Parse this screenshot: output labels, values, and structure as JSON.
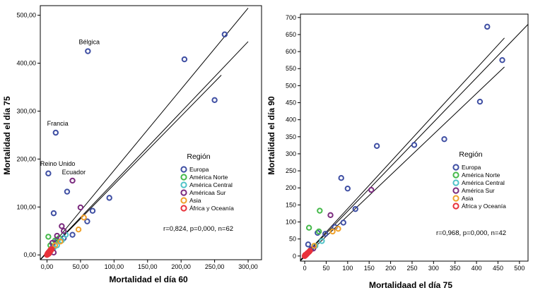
{
  "chart_data": [
    {
      "type": "scatter",
      "xlabel": "Mortalidad el día 60",
      "ylabel": "Mortalidad el día 75",
      "xlim": [
        -10,
        320
      ],
      "ylim": [
        -10,
        520
      ],
      "xticks": [
        "0,00",
        "50,00",
        "100,00",
        "150,00",
        "200,00",
        "250,00",
        "300,00"
      ],
      "yticks": [
        "0,00",
        "100,00",
        "200,00",
        "300,00",
        "400,00",
        "500,00"
      ],
      "legend_title": "Región",
      "legend": [
        {
          "label": "Europa",
          "color": "#3F4FA3"
        },
        {
          "label": "América Norte",
          "color": "#45B94A"
        },
        {
          "label": "América Central",
          "color": "#4FC3C8"
        },
        {
          "label": "Américaa Sur",
          "color": "#7B2B7E"
        },
        {
          "label": "Asia",
          "color": "#F0A12A"
        },
        {
          "label": "África y Oceanía",
          "color": "#E8323A"
        }
      ],
      "stat_text": "r=0,824, p=0,000, n=62",
      "fit_lines": [
        {
          "x": [
            -10,
            300
          ],
          "y": [
            -10,
            515
          ]
        },
        {
          "x": [
            -10,
            300
          ],
          "y": [
            -10,
            445
          ]
        },
        {
          "x": [
            -10,
            260
          ],
          "y": [
            -10,
            375
          ]
        }
      ],
      "annotations": [
        {
          "text": "Bélgica",
          "x": 63,
          "y": 440
        },
        {
          "text": "Francia",
          "x": 16,
          "y": 270
        },
        {
          "text": "Reino Unido",
          "x": 16,
          "y": 186
        },
        {
          "text": "Ecuador",
          "x": 40,
          "y": 168
        }
      ],
      "series": [
        {
          "name": "Europa",
          "points": [
            [
              61,
              425
            ],
            [
              205,
              408
            ],
            [
              265,
              460
            ],
            [
              250,
              323
            ],
            [
              13,
              255
            ],
            [
              2,
              170
            ],
            [
              30,
              132
            ],
            [
              93,
              119
            ],
            [
              68,
              92
            ],
            [
              10,
              87
            ],
            [
              60,
              70
            ],
            [
              38,
              42
            ],
            [
              25,
              35
            ],
            [
              15,
              30
            ],
            [
              8,
              15
            ],
            [
              4,
              8
            ]
          ]
        },
        {
          "name": "América Norte",
          "points": [
            [
              2,
              38
            ],
            [
              12,
              30
            ],
            [
              18,
              35
            ],
            [
              5,
              20
            ]
          ]
        },
        {
          "name": "América Central",
          "points": [
            [
              28,
              42
            ],
            [
              22,
              30
            ],
            [
              15,
              20
            ],
            [
              10,
              15
            ],
            [
              5,
              8
            ]
          ]
        },
        {
          "name": "Américaa Sur",
          "points": [
            [
              38,
              155
            ],
            [
              50,
              99
            ],
            [
              22,
              60
            ],
            [
              15,
              40
            ],
            [
              25,
              50
            ],
            [
              10,
              5
            ],
            [
              8,
              25
            ]
          ]
        },
        {
          "name": "Asia",
          "points": [
            [
              47,
              53
            ],
            [
              55,
              78
            ],
            [
              20,
              28
            ],
            [
              12,
              20
            ],
            [
              6,
              12
            ]
          ]
        },
        {
          "name": "África y Oceanía",
          "points": [
            [
              0,
              0
            ],
            [
              2,
              2
            ],
            [
              3,
              4
            ],
            [
              4,
              6
            ],
            [
              5,
              8
            ],
            [
              6,
              10
            ],
            [
              1,
              1
            ],
            [
              3,
              3
            ],
            [
              2,
              5
            ],
            [
              5,
              10
            ],
            [
              7,
              12
            ],
            [
              1,
              3
            ]
          ]
        }
      ]
    },
    {
      "type": "scatter",
      "xlabel": "Mortalidaad el día 75",
      "ylabel": "Mortalidad el día 90",
      "xlim": [
        -10,
        520
      ],
      "ylim": [
        -15,
        710
      ],
      "xticks": [
        "0",
        "50",
        "100",
        "150",
        "200",
        "250",
        "300",
        "350",
        "400",
        "450",
        "500"
      ],
      "yticks": [
        "0",
        "50",
        "100",
        "150",
        "200",
        "250",
        "300",
        "350",
        "400",
        "450",
        "500",
        "550",
        "600",
        "650",
        "700"
      ],
      "legend_title": "Región",
      "legend": [
        {
          "label": "Europa",
          "color": "#3F4FA3"
        },
        {
          "label": "América Norte",
          "color": "#45B94A"
        },
        {
          "label": "América Central",
          "color": "#4FC3C8"
        },
        {
          "label": "América Sur",
          "color": "#7B2B7E"
        },
        {
          "label": "Asia",
          "color": "#F0A12A"
        },
        {
          "label": "África y Oceanía",
          "color": "#E8323A"
        }
      ],
      "stat_text": "r=0,968, p=0,000, n=42",
      "fit_lines": [
        {
          "x": [
            -10,
            465
          ],
          "y": [
            -12,
            640
          ]
        },
        {
          "x": [
            -10,
            520
          ],
          "y": [
            -12,
            680
          ]
        },
        {
          "x": [
            -10,
            465
          ],
          "y": [
            -14,
            555
          ]
        }
      ],
      "series": [
        {
          "name": "Europa",
          "points": [
            [
              425,
              673
            ],
            [
              460,
              575
            ],
            [
              408,
              453
            ],
            [
              325,
              343
            ],
            [
              255,
              326
            ],
            [
              168,
              323
            ],
            [
              85,
              229
            ],
            [
              100,
              198
            ],
            [
              118,
              138
            ],
            [
              90,
              98
            ],
            [
              70,
              85
            ],
            [
              48,
              65
            ],
            [
              30,
              68
            ],
            [
              8,
              34
            ],
            [
              15,
              20
            ]
          ]
        },
        {
          "name": "América Norte",
          "points": [
            [
              10,
              83
            ],
            [
              35,
              133
            ],
            [
              33,
              72
            ]
          ]
        },
        {
          "name": "América Central",
          "points": [
            [
              40,
              44
            ],
            [
              25,
              30
            ]
          ]
        },
        {
          "name": "América Sur",
          "points": [
            [
              155,
              194
            ],
            [
              60,
              120
            ],
            [
              20,
              22
            ]
          ]
        },
        {
          "name": "Asia",
          "points": [
            [
              78,
              80
            ],
            [
              65,
              72
            ],
            [
              22,
              30
            ]
          ]
        },
        {
          "name": "África y Oceanía",
          "points": [
            [
              0,
              0
            ],
            [
              2,
              2
            ],
            [
              4,
              5
            ],
            [
              6,
              8
            ],
            [
              3,
              4
            ],
            [
              8,
              10
            ],
            [
              10,
              12
            ],
            [
              12,
              15
            ],
            [
              1,
              3
            ],
            [
              5,
              6
            ]
          ]
        }
      ]
    }
  ]
}
